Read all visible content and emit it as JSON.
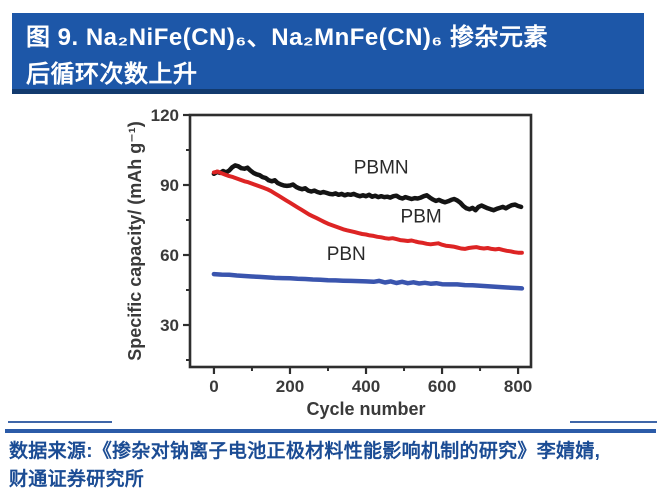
{
  "theme": {
    "banner_bg": "#1d57a8",
    "banner_border": "#123a6e",
    "banner_text": "#ffffff",
    "divider": "#2b5ba8",
    "source_text": "#1b4c94",
    "page_bg": "#ffffff",
    "axis_color": "#2e2e2e",
    "tick_label": "#3a3a3a"
  },
  "banner": {
    "line1": "图 9. Na₂NiFe(CN)₆、Na₂MnFe(CN)₆ 掺杂元素",
    "line2": "后循环次数上升"
  },
  "source": {
    "line1": "数据来源:《掺杂对钠离子电池正极材料性能影响机制的研究》李婧婧,",
    "line2": "财通证券研究所"
  },
  "chart_data": {
    "type": "line",
    "title": "",
    "xlabel": "Cycle number",
    "ylabel": "Specific capacity/ (mAh g⁻¹)",
    "xlim": [
      -63,
      834
    ],
    "ylim": [
      12,
      120
    ],
    "x_ticks": [
      0,
      200,
      400,
      600,
      800
    ],
    "x_minor_ticks": [
      100,
      300,
      500,
      700
    ],
    "y_ticks": [
      30,
      60,
      90,
      120
    ],
    "y_minor_ticks": [
      15,
      45,
      75,
      105
    ],
    "grid": false,
    "legend_position": "inline-annotations",
    "series": [
      {
        "name": "PBMN",
        "color": "#141414",
        "line_width": 4.5,
        "points": [
          [
            0,
            94.8
          ],
          [
            8,
            95.6
          ],
          [
            16,
            95.2
          ],
          [
            24,
            96.0
          ],
          [
            32,
            95.4
          ],
          [
            40,
            96.2
          ],
          [
            48,
            97.6
          ],
          [
            56,
            98.4
          ],
          [
            64,
            98.0
          ],
          [
            72,
            97.2
          ],
          [
            80,
            97.0
          ],
          [
            88,
            97.4
          ],
          [
            96,
            96.2
          ],
          [
            104,
            95.2
          ],
          [
            112,
            94.6
          ],
          [
            120,
            94.2
          ],
          [
            128,
            93.4
          ],
          [
            136,
            93.0
          ],
          [
            144,
            92.0
          ],
          [
            152,
            91.6
          ],
          [
            160,
            92.0
          ],
          [
            168,
            90.8
          ],
          [
            176,
            90.2
          ],
          [
            184,
            89.8
          ],
          [
            192,
            89.6
          ],
          [
            200,
            89.8
          ],
          [
            208,
            90.2
          ],
          [
            216,
            89.2
          ],
          [
            224,
            88.6
          ],
          [
            232,
            88.2
          ],
          [
            240,
            88.6
          ],
          [
            248,
            87.6
          ],
          [
            256,
            87.2
          ],
          [
            264,
            87.6
          ],
          [
            272,
            87.0
          ],
          [
            280,
            86.6
          ],
          [
            288,
            87.0
          ],
          [
            296,
            86.6
          ],
          [
            304,
            86.2
          ],
          [
            312,
            86.0
          ],
          [
            320,
            86.4
          ],
          [
            328,
            85.8
          ],
          [
            336,
            86.2
          ],
          [
            344,
            85.6
          ],
          [
            352,
            86.0
          ],
          [
            360,
            85.8
          ],
          [
            368,
            86.2
          ],
          [
            376,
            85.6
          ],
          [
            384,
            85.2
          ],
          [
            392,
            85.6
          ],
          [
            400,
            85.2
          ],
          [
            408,
            85.8
          ],
          [
            416,
            85.0
          ],
          [
            424,
            85.4
          ],
          [
            432,
            84.8
          ],
          [
            440,
            85.2
          ],
          [
            448,
            84.8
          ],
          [
            456,
            85.0
          ],
          [
            464,
            84.6
          ],
          [
            472,
            85.2
          ],
          [
            480,
            85.4
          ],
          [
            488,
            84.6
          ],
          [
            496,
            84.2
          ],
          [
            504,
            84.8
          ],
          [
            512,
            84.4
          ],
          [
            520,
            84.0
          ],
          [
            528,
            84.4
          ],
          [
            536,
            84.2
          ],
          [
            544,
            84.6
          ],
          [
            552,
            85.2
          ],
          [
            560,
            85.6
          ],
          [
            568,
            84.6
          ],
          [
            576,
            83.8
          ],
          [
            584,
            83.2
          ],
          [
            592,
            83.6
          ],
          [
            600,
            83.0
          ],
          [
            608,
            82.6
          ],
          [
            616,
            83.0
          ],
          [
            624,
            83.6
          ],
          [
            632,
            84.0
          ],
          [
            640,
            83.4
          ],
          [
            648,
            82.4
          ],
          [
            656,
            81.0
          ],
          [
            664,
            80.0
          ],
          [
            672,
            79.6
          ],
          [
            680,
            80.2
          ],
          [
            688,
            79.2
          ],
          [
            696,
            80.6
          ],
          [
            704,
            81.2
          ],
          [
            712,
            80.6
          ],
          [
            720,
            80.0
          ],
          [
            728,
            79.6
          ],
          [
            736,
            79.2
          ],
          [
            744,
            79.8
          ],
          [
            752,
            80.2
          ],
          [
            760,
            80.6
          ],
          [
            768,
            80.0
          ],
          [
            776,
            80.8
          ],
          [
            784,
            81.4
          ],
          [
            792,
            81.6
          ],
          [
            800,
            81.0
          ],
          [
            808,
            80.6
          ]
        ]
      },
      {
        "name": "PBM",
        "color": "#dd2424",
        "line_width": 4,
        "points": [
          [
            0,
            95.4
          ],
          [
            10,
            95.8
          ],
          [
            20,
            95.0
          ],
          [
            30,
            94.4
          ],
          [
            40,
            93.8
          ],
          [
            50,
            93.4
          ],
          [
            60,
            92.8
          ],
          [
            70,
            92.2
          ],
          [
            80,
            91.6
          ],
          [
            90,
            91.2
          ],
          [
            100,
            90.6
          ],
          [
            110,
            90.0
          ],
          [
            120,
            89.4
          ],
          [
            130,
            88.8
          ],
          [
            140,
            88.2
          ],
          [
            150,
            87.4
          ],
          [
            160,
            86.4
          ],
          [
            170,
            85.4
          ],
          [
            180,
            84.4
          ],
          [
            190,
            83.4
          ],
          [
            200,
            82.4
          ],
          [
            210,
            81.4
          ],
          [
            220,
            80.4
          ],
          [
            230,
            79.4
          ],
          [
            240,
            78.4
          ],
          [
            250,
            77.4
          ],
          [
            260,
            76.6
          ],
          [
            270,
            75.8
          ],
          [
            280,
            75.0
          ],
          [
            290,
            74.2
          ],
          [
            300,
            73.4
          ],
          [
            310,
            72.8
          ],
          [
            320,
            72.2
          ],
          [
            330,
            71.6
          ],
          [
            340,
            71.0
          ],
          [
            350,
            70.6
          ],
          [
            360,
            70.2
          ],
          [
            370,
            69.8
          ],
          [
            380,
            69.4
          ],
          [
            390,
            69.0
          ],
          [
            400,
            68.8
          ],
          [
            410,
            68.4
          ],
          [
            420,
            68.2
          ],
          [
            430,
            67.8
          ],
          [
            440,
            67.6
          ],
          [
            450,
            67.2
          ],
          [
            460,
            67.0
          ],
          [
            470,
            67.2
          ],
          [
            480,
            66.8
          ],
          [
            490,
            66.4
          ],
          [
            500,
            66.2
          ],
          [
            510,
            66.0
          ],
          [
            520,
            66.2
          ],
          [
            530,
            65.8
          ],
          [
            540,
            65.4
          ],
          [
            550,
            65.2
          ],
          [
            560,
            64.8
          ],
          [
            570,
            64.6
          ],
          [
            580,
            64.8
          ],
          [
            590,
            65.0
          ],
          [
            600,
            64.4
          ],
          [
            610,
            64.0
          ],
          [
            620,
            63.8
          ],
          [
            630,
            63.6
          ],
          [
            640,
            63.2
          ],
          [
            650,
            62.8
          ],
          [
            660,
            62.6
          ],
          [
            670,
            63.0
          ],
          [
            680,
            63.2
          ],
          [
            690,
            63.4
          ],
          [
            700,
            63.0
          ],
          [
            710,
            62.8
          ],
          [
            720,
            63.0
          ],
          [
            730,
            62.6
          ],
          [
            740,
            62.4
          ],
          [
            750,
            62.6
          ],
          [
            760,
            62.2
          ],
          [
            770,
            61.8
          ],
          [
            780,
            61.6
          ],
          [
            790,
            61.2
          ],
          [
            800,
            61.0
          ],
          [
            810,
            61.0
          ]
        ]
      },
      {
        "name": "PBN",
        "color": "#3a55ae",
        "line_width": 4.5,
        "points": [
          [
            0,
            51.8
          ],
          [
            20,
            51.6
          ],
          [
            40,
            51.5
          ],
          [
            60,
            51.2
          ],
          [
            80,
            51.0
          ],
          [
            100,
            50.8
          ],
          [
            120,
            50.6
          ],
          [
            140,
            50.4
          ],
          [
            160,
            50.2
          ],
          [
            180,
            50.1
          ],
          [
            200,
            50.0
          ],
          [
            220,
            49.8
          ],
          [
            240,
            49.7
          ],
          [
            260,
            49.5
          ],
          [
            280,
            49.4
          ],
          [
            300,
            49.2
          ],
          [
            320,
            49.1
          ],
          [
            340,
            49.0
          ],
          [
            360,
            48.9
          ],
          [
            380,
            48.8
          ],
          [
            400,
            48.7
          ],
          [
            420,
            48.5
          ],
          [
            435,
            48.9
          ],
          [
            450,
            48.2
          ],
          [
            465,
            48.7
          ],
          [
            480,
            48.0
          ],
          [
            495,
            48.5
          ],
          [
            510,
            47.9
          ],
          [
            525,
            48.3
          ],
          [
            540,
            47.8
          ],
          [
            555,
            48.1
          ],
          [
            570,
            47.7
          ],
          [
            585,
            47.9
          ],
          [
            600,
            47.5
          ],
          [
            620,
            47.4
          ],
          [
            640,
            47.4
          ],
          [
            660,
            47.1
          ],
          [
            680,
            47.0
          ],
          [
            700,
            46.8
          ],
          [
            720,
            46.6
          ],
          [
            740,
            46.4
          ],
          [
            760,
            46.2
          ],
          [
            780,
            46.0
          ],
          [
            800,
            45.8
          ],
          [
            810,
            45.7
          ]
        ]
      }
    ],
    "annotations": [
      {
        "text": "PBMN",
        "x": 440,
        "y": 95.0
      },
      {
        "text": "PBM",
        "x": 545,
        "y": 74.0
      },
      {
        "text": "PBN",
        "x": 348,
        "y": 57.8
      }
    ]
  }
}
